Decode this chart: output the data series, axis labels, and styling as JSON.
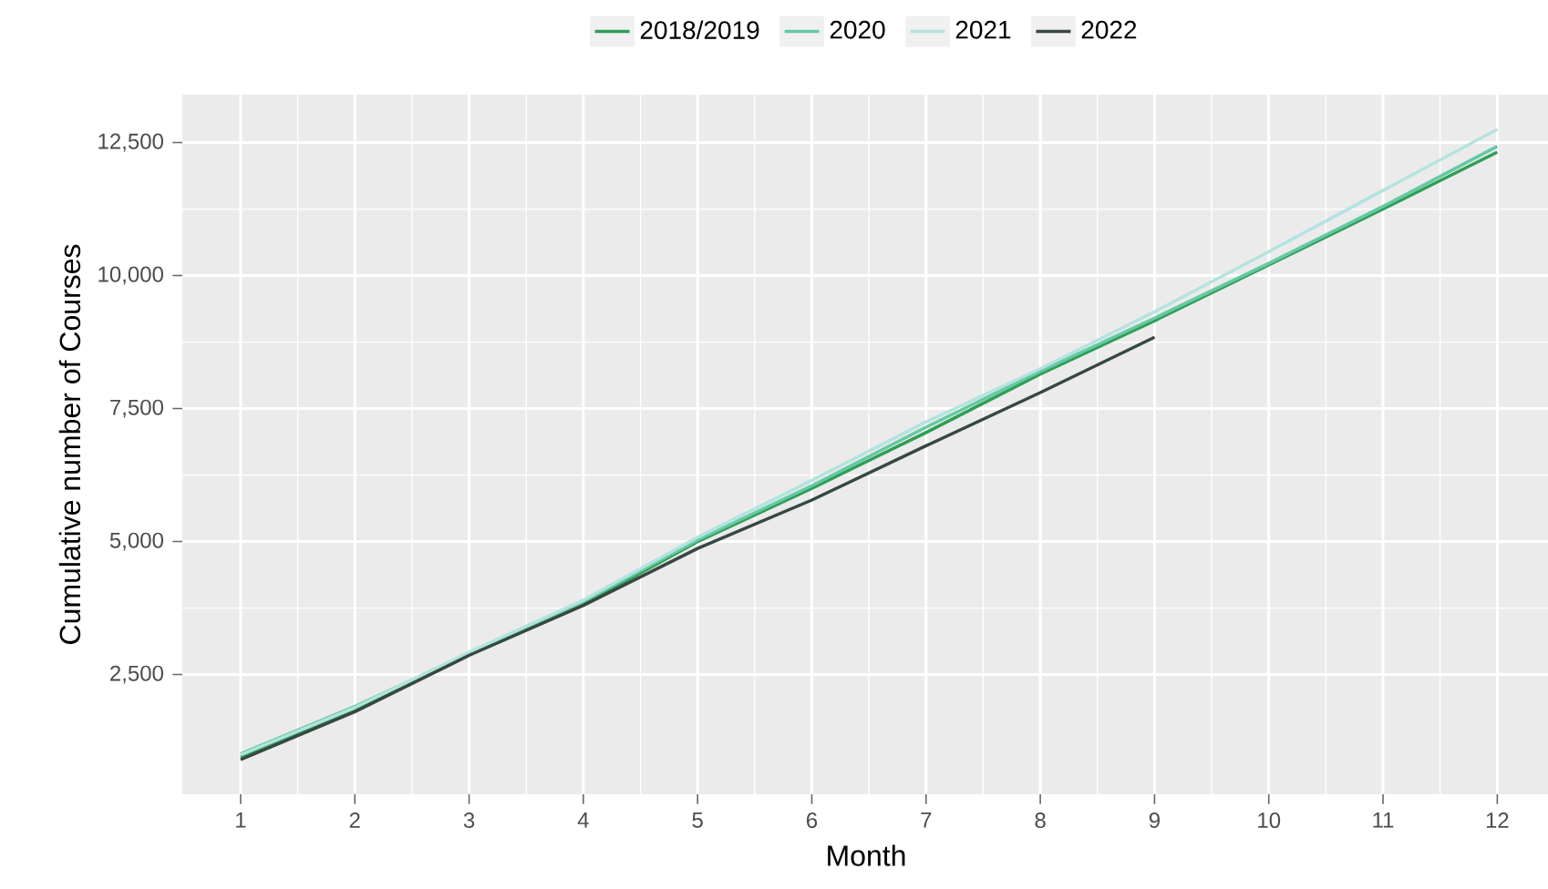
{
  "chart_data": {
    "type": "line",
    "xlabel": "Month",
    "ylabel": "Cumulative number of Courses",
    "x": [
      1,
      2,
      3,
      4,
      5,
      6,
      7,
      8,
      9,
      10,
      11,
      12
    ],
    "series": [
      {
        "name": "2018/2019",
        "color": "#2e9e57",
        "values": [
          950,
          1850,
          2880,
          3820,
          5000,
          6000,
          7050,
          8150,
          9150,
          10200,
          11250,
          12320
        ]
      },
      {
        "name": "2020",
        "color": "#66c9a3",
        "values": [
          1010,
          1900,
          2900,
          3870,
          5030,
          6050,
          7150,
          8200,
          9200,
          10230,
          11300,
          12430
        ]
      },
      {
        "name": "2021",
        "color": "#b3e3e0",
        "values": [
          990,
          1880,
          2920,
          3900,
          5080,
          6150,
          7250,
          8250,
          9320,
          10450,
          11600,
          12750
        ]
      },
      {
        "name": "2022",
        "color": "#36483f",
        "values": [
          900,
          1800,
          2860,
          3800,
          4870,
          5780,
          6800,
          7800,
          8840,
          null,
          null,
          null
        ]
      }
    ],
    "xlim": [
      0.49,
      12.46
    ],
    "ylim": [
      250,
      13400
    ],
    "xticks": [
      1,
      2,
      3,
      4,
      5,
      6,
      7,
      8,
      9,
      10,
      11,
      12
    ],
    "yticks": [
      {
        "value": 2500,
        "label": "2,500"
      },
      {
        "value": 5000,
        "label": "5,000"
      },
      {
        "value": 7500,
        "label": "7,500"
      },
      {
        "value": 10000,
        "label": "10,000"
      },
      {
        "value": 12500,
        "label": "12,500"
      }
    ],
    "grid": true,
    "legend": "top"
  }
}
